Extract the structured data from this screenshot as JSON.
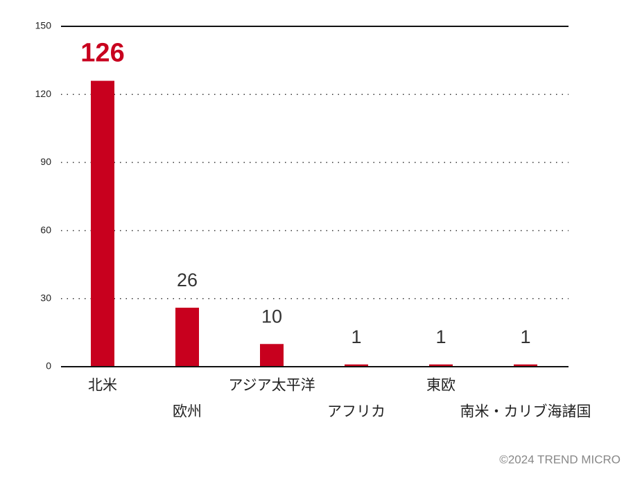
{
  "chart_data": {
    "type": "bar",
    "categories": [
      "北米",
      "欧州",
      "アジア太平洋",
      "アフリカ",
      "東欧",
      "南米・カリブ海諸国"
    ],
    "values": [
      126,
      26,
      10,
      1,
      1,
      1
    ],
    "color": "#c8001e",
    "value_label_colors": [
      "#c8001e",
      "#333333",
      "#333333",
      "#333333",
      "#333333",
      "#333333"
    ],
    "ylim": [
      0,
      150
    ],
    "yticks": [
      0,
      30,
      60,
      90,
      120,
      150
    ],
    "grid": true,
    "credit": "©2024 TREND MICRO"
  }
}
